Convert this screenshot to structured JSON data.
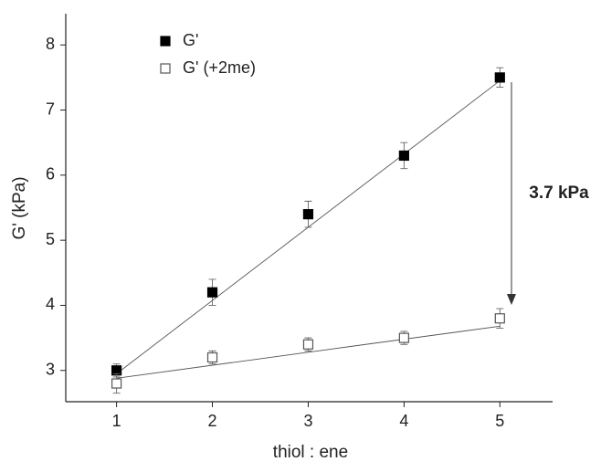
{
  "chart_data": {
    "type": "scatter",
    "x_label": "thiol : ene",
    "y_label": "G' (kPa)",
    "xlim": [
      0.47,
      5.55
    ],
    "ylim": [
      2.52,
      8.48
    ],
    "xticks": [
      1,
      2,
      3,
      4,
      5
    ],
    "yticks": [
      3,
      4,
      5,
      6,
      7,
      8
    ],
    "series": [
      {
        "name": "G'",
        "color": "#000000",
        "marker": "filled",
        "x": [
          1,
          2,
          3,
          4,
          5
        ],
        "values": [
          3.0,
          4.2,
          5.4,
          6.3,
          7.5
        ],
        "errors": [
          0.1,
          0.2,
          0.2,
          0.2,
          0.15
        ],
        "fit": {
          "x": [
            1,
            5
          ],
          "values": [
            2.95,
            7.45
          ]
        }
      },
      {
        "name": "G' (+2me)",
        "color": "#555555",
        "marker": "open",
        "x": [
          1,
          2,
          3,
          4,
          5
        ],
        "values": [
          2.8,
          3.2,
          3.4,
          3.5,
          3.8
        ],
        "errors": [
          0.15,
          0.1,
          0.1,
          0.1,
          0.15
        ],
        "fit": {
          "x": [
            1,
            5
          ],
          "values": [
            2.88,
            3.68
          ]
        }
      }
    ],
    "annotation": "3.7 kPa"
  }
}
